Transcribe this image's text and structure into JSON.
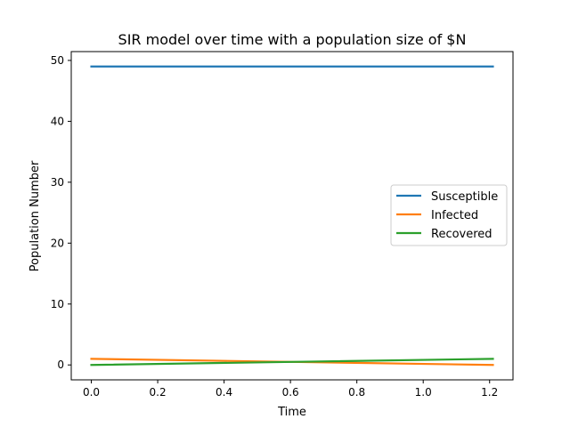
{
  "chart_data": {
    "type": "line",
    "title": "SIR model over time with a population size of $N",
    "xlabel": "Time",
    "ylabel": "Population Number",
    "xlim": [
      -0.0605,
      1.2705
    ],
    "ylim": [
      -2.45,
      51.45
    ],
    "xticks": [
      0.0,
      0.2,
      0.4,
      0.6,
      0.8,
      1.0,
      1.2
    ],
    "xtick_labels": [
      "0.0",
      "0.2",
      "0.4",
      "0.6",
      "0.8",
      "1.0",
      "1.2"
    ],
    "yticks": [
      0,
      10,
      20,
      30,
      40,
      50
    ],
    "ytick_labels": [
      "0",
      "10",
      "20",
      "30",
      "40",
      "50"
    ],
    "grid": false,
    "legend_position": "center-right",
    "series": [
      {
        "name": "Susceptible",
        "color": "#1f77b4",
        "x": [
          0.0,
          1.21
        ],
        "y": [
          49,
          49
        ]
      },
      {
        "name": "Infected",
        "color": "#ff7f0e",
        "x": [
          0.0,
          0.605,
          1.21
        ],
        "y": [
          1,
          0.5,
          0
        ]
      },
      {
        "name": "Recovered",
        "color": "#2ca02c",
        "x": [
          0.0,
          0.605,
          1.21
        ],
        "y": [
          0,
          0.5,
          1
        ]
      }
    ]
  }
}
